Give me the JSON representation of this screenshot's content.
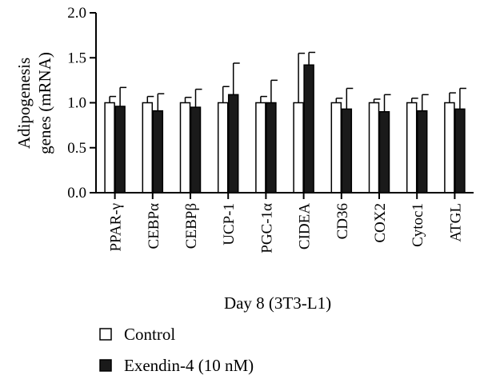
{
  "chart_data": {
    "type": "bar",
    "ylabel_line1": "Adipogenesis",
    "ylabel_line2": "genes (mRNA)",
    "xlabel": "Day 8 (3T3-L1)",
    "ylim": [
      0,
      2.0
    ],
    "yticks": [
      "0.0",
      "0.5",
      "1.0",
      "1.5",
      "2.0"
    ],
    "grid": false,
    "legend_position": "bottom-left",
    "categories": [
      "PPAR-γ",
      "CEBPα",
      "CEBPβ",
      "UCP-1",
      "PGC-1α",
      "CIDEA",
      "CD36",
      "COX2",
      "Cytoc1",
      "ATGL"
    ],
    "series": [
      {
        "name": "Control",
        "fill": "#ffffff",
        "values": [
          1.0,
          1.0,
          1.0,
          1.0,
          1.0,
          1.0,
          1.0,
          1.0,
          1.0,
          1.0
        ],
        "errors": [
          0.07,
          0.07,
          0.06,
          0.18,
          0.07,
          0.55,
          0.05,
          0.04,
          0.05,
          0.11
        ]
      },
      {
        "name": "Exendin-4 (10 nM)",
        "fill": "#1a1a1a",
        "values": [
          0.96,
          0.91,
          0.95,
          1.09,
          1.0,
          1.42,
          0.93,
          0.9,
          0.91,
          0.93
        ],
        "errors": [
          0.21,
          0.19,
          0.2,
          0.35,
          0.25,
          0.14,
          0.23,
          0.19,
          0.18,
          0.23
        ]
      }
    ]
  }
}
